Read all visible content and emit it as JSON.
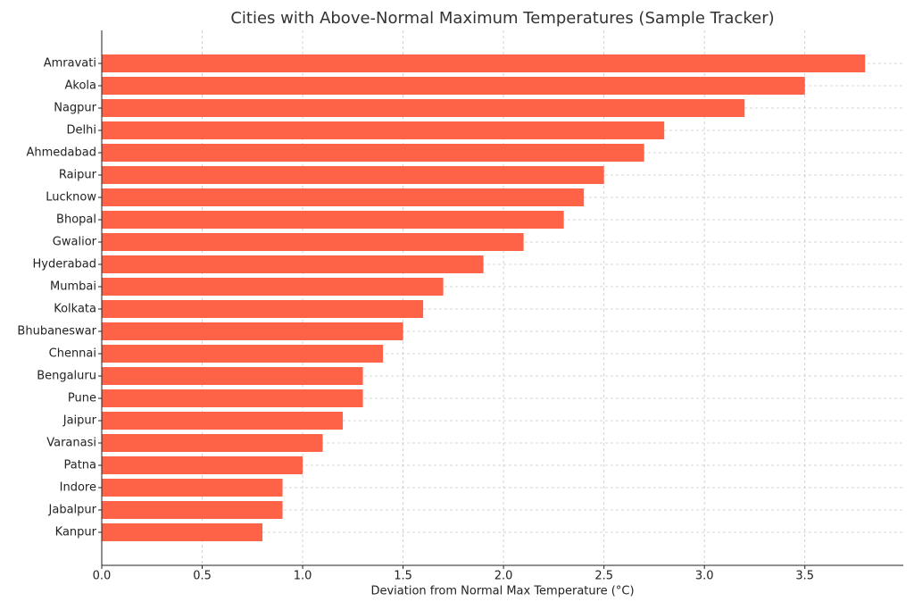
{
  "chart_data": {
    "type": "barh",
    "title": "Cities with Above-Normal Maximum Temperatures (Sample Tracker)",
    "x_label": "Deviation from Normal Max Temperature (°C)",
    "categories": [
      "Amravati",
      "Akola",
      "Nagpur",
      "Delhi",
      "Ahmedabad",
      "Raipur",
      "Lucknow",
      "Bhopal",
      "Gwalior",
      "Hyderabad",
      "Mumbai",
      "Kolkata",
      "Bhubaneswar",
      "Chennai",
      "Bengaluru",
      "Pune",
      "Jaipur",
      "Varanasi",
      "Patna",
      "Indore",
      "Jabalpur",
      "Kanpur"
    ],
    "values": [
      3.8,
      3.5,
      3.2,
      2.8,
      2.7,
      2.5,
      2.4,
      2.3,
      2.1,
      1.9,
      1.7,
      1.6,
      1.5,
      1.4,
      1.3,
      1.3,
      1.2,
      1.1,
      1.0,
      0.9,
      0.9,
      0.8
    ],
    "color": "#ff6347",
    "xlim": [
      0,
      3.99
    ],
    "xticks": [
      {
        "value": 0,
        "label": "0.0"
      },
      0.5,
      {
        "value": 1,
        "label": "1.0"
      },
      1.5,
      {
        "value": 2,
        "label": "2.0"
      },
      2.5,
      {
        "value": 3,
        "label": "3.0"
      },
      3.5
    ],
    "grid": true
  }
}
